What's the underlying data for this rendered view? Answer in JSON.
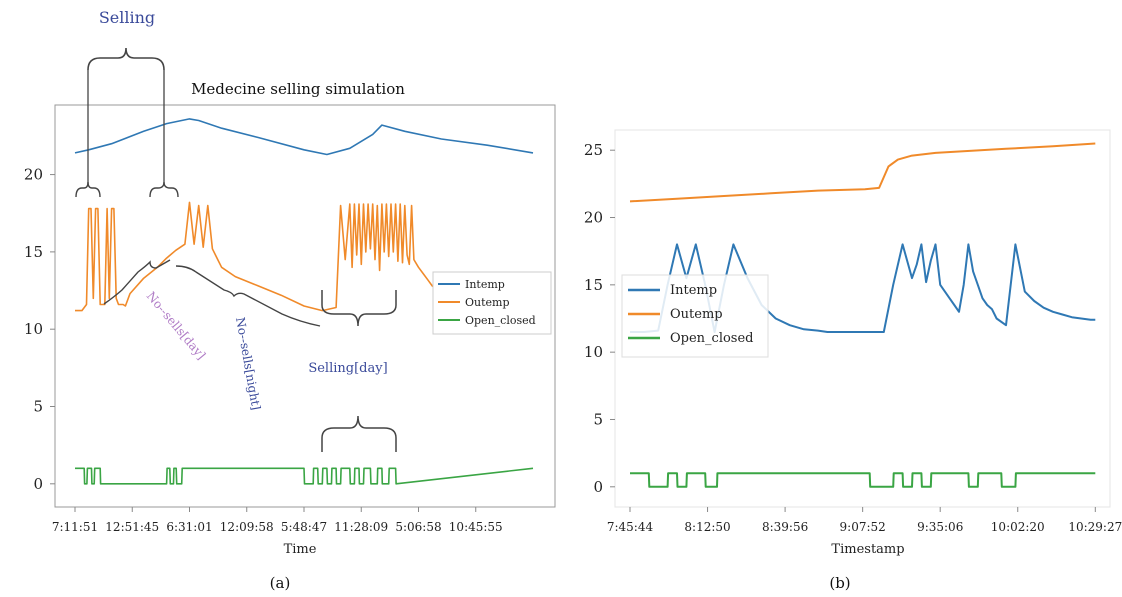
{
  "colors": {
    "intemp": "#2f78b4",
    "outemp": "#f08a2a",
    "open": "#3aa544",
    "annot_blue": "#3a4a9a",
    "annot_purple": "#b07cc6"
  },
  "chart_data": [
    {
      "type": "line",
      "panel_label": "(a)",
      "title": "Medecine selling simulation",
      "xlabel": "Time",
      "ylabel": "",
      "ylim": [
        -1.5,
        24.5
      ],
      "xlim": [
        0,
        100
      ],
      "yticks": [
        0,
        5,
        10,
        15,
        20
      ],
      "xticks": [
        "7:11:51",
        "12:51:45",
        "6:31:01",
        "12:09:58",
        "5:48:47",
        "11:28:09",
        "5:06:58",
        "10:45:55"
      ],
      "xtick_positions": [
        0,
        12.5,
        25,
        37.5,
        50,
        62.5,
        75,
        87.5
      ],
      "grid": false,
      "legend": [
        "Intemp",
        "Outemp",
        "Open_closed"
      ],
      "legend_position": "right",
      "annotations": [
        "Selling",
        "No--sells[day]",
        "No--sells[night]",
        "Selling[day]"
      ],
      "series": [
        {
          "name": "Intemp",
          "x": [
            0,
            3,
            8,
            15,
            20,
            25,
            27,
            32,
            40,
            50,
            55,
            60,
            65,
            67,
            72,
            80,
            90,
            100
          ],
          "y": [
            21.4,
            21.6,
            22.0,
            22.8,
            23.3,
            23.6,
            23.5,
            23.0,
            22.4,
            21.6,
            21.3,
            21.7,
            22.6,
            23.2,
            22.8,
            22.3,
            21.9,
            21.4
          ]
        },
        {
          "name": "Outemp",
          "x": [
            0,
            1.5,
            2.5,
            3,
            3.5,
            4,
            4.5,
            5,
            5.5,
            6,
            6.5,
            7,
            7.5,
            8,
            8.5,
            9,
            9.5,
            10,
            10.5,
            11,
            12,
            15,
            18,
            20,
            22,
            24,
            25,
            26,
            27,
            28,
            29,
            30,
            31,
            32,
            35,
            40,
            45,
            50,
            54,
            57,
            58,
            59,
            60,
            60.5,
            61,
            61.5,
            62,
            62.5,
            63,
            63.5,
            64,
            64.5,
            65,
            65.5,
            66,
            66.5,
            67,
            67.5,
            68,
            68.5,
            69,
            69.5,
            70,
            70.5,
            71,
            71.5,
            72,
            72.5,
            73,
            73.5,
            74,
            75,
            76,
            77,
            78,
            80
          ],
          "y": [
            11.2,
            11.2,
            11.6,
            17.8,
            17.8,
            12,
            17.8,
            17.8,
            11.6,
            11.6,
            11.6,
            17.8,
            12,
            17.8,
            17.8,
            12,
            11.6,
            11.6,
            11.6,
            11.5,
            12.3,
            13.3,
            14.0,
            14.6,
            15.1,
            15.5,
            18.2,
            15.5,
            18.0,
            15.3,
            18.0,
            15.2,
            14.6,
            14.0,
            13.4,
            12.8,
            12.2,
            11.5,
            11.2,
            11.4,
            18.0,
            14.5,
            18.1,
            14.0,
            18.1,
            14.8,
            18.1,
            14.2,
            18.1,
            15.0,
            18.1,
            15.2,
            18.1,
            14.5,
            18.0,
            13.8,
            18.1,
            15.0,
            18.1,
            14.7,
            18.1,
            15.0,
            18.1,
            14.4,
            18.1,
            14.3,
            18.0,
            14.8,
            14.2,
            18.0,
            14.5,
            14.0,
            13.6,
            13.2,
            12.8,
            12.3
          ]
        },
        {
          "name": "Open_closed",
          "x": [
            0,
            2,
            2.1,
            2.6,
            2.7,
            3.6,
            3.7,
            4.2,
            4.3,
            5.5,
            5.6,
            20,
            20.1,
            20.7,
            20.8,
            21.5,
            21.6,
            22.1,
            22.2,
            23.3,
            23.4,
            50,
            50.1,
            52,
            52.1,
            53,
            53.1,
            54,
            54.1,
            55,
            55.1,
            56,
            56.1,
            57,
            57.1,
            58,
            58.1,
            60,
            60.1,
            61,
            61.1,
            62,
            62.1,
            63,
            63.1,
            64.5,
            64.6,
            66,
            66.1,
            67,
            67.1,
            68.5,
            68.6,
            70,
            70.1,
            100
          ],
          "y": [
            1,
            1,
            0,
            0,
            1,
            1,
            0,
            0,
            1,
            1,
            0,
            0,
            1,
            1,
            0,
            0,
            1,
            1,
            0,
            0,
            1,
            1,
            0,
            0,
            1,
            1,
            0,
            0,
            1,
            1,
            0,
            0,
            1,
            1,
            0,
            0,
            1,
            1,
            0,
            0,
            1,
            1,
            0,
            0,
            1,
            1,
            0,
            0,
            1,
            1,
            0,
            0,
            1,
            1,
            0,
            1
          ]
        }
      ]
    },
    {
      "type": "line",
      "panel_label": "(b)",
      "title": "",
      "xlabel": "Timestamp",
      "ylabel": "",
      "ylim": [
        -1.5,
        26.5
      ],
      "xlim": [
        0,
        100
      ],
      "yticks": [
        0,
        5,
        10,
        15,
        20,
        25
      ],
      "xticks": [
        "7:45:44",
        "8:12:50",
        "8:39:56",
        "9:07:52",
        "9:35:06",
        "10:02:20",
        "10:29:27"
      ],
      "xtick_positions": [
        0,
        16.5,
        33,
        49.5,
        66,
        82.5,
        99
      ],
      "grid": false,
      "legend": [
        "Intemp",
        "Outemp",
        "Open_closed"
      ],
      "legend_position": "center-left",
      "series": [
        {
          "name": "Intemp",
          "x": [
            0,
            3,
            6,
            8,
            10,
            12,
            14,
            16,
            18,
            20,
            22,
            25,
            28,
            31,
            34,
            37,
            40,
            42,
            44,
            46,
            48,
            50,
            52,
            54,
            56,
            58,
            60,
            61,
            62,
            63,
            64,
            65,
            66,
            67,
            68,
            69,
            70,
            71,
            72,
            73,
            74,
            75,
            76,
            77,
            78,
            80,
            82,
            84,
            86,
            88,
            90,
            92,
            94,
            96,
            98,
            99
          ],
          "y": [
            11.5,
            11.5,
            11.6,
            15.0,
            18.0,
            15.5,
            18.0,
            15.0,
            11.5,
            15.0,
            18.0,
            15.5,
            13.5,
            12.5,
            12.0,
            11.7,
            11.6,
            11.5,
            11.5,
            11.5,
            11.5,
            11.5,
            11.5,
            11.5,
            15.0,
            18.0,
            15.5,
            16.5,
            18.0,
            15.2,
            16.8,
            18.0,
            15.0,
            14.5,
            14.0,
            13.5,
            13.0,
            15.0,
            18.0,
            16.0,
            15.0,
            14.0,
            13.5,
            13.2,
            12.5,
            12.0,
            18.0,
            14.5,
            13.8,
            13.3,
            13.0,
            12.8,
            12.6,
            12.5,
            12.4,
            12.4
          ]
        },
        {
          "name": "Outemp",
          "x": [
            0,
            10,
            20,
            30,
            40,
            50,
            53,
            54,
            55,
            57,
            60,
            65,
            70,
            80,
            90,
            99
          ],
          "y": [
            21.2,
            21.4,
            21.6,
            21.8,
            22.0,
            22.1,
            22.2,
            23.0,
            23.8,
            24.3,
            24.6,
            24.8,
            24.9,
            25.1,
            25.3,
            25.5
          ]
        },
        {
          "name": "Open_closed",
          "x": [
            0,
            4,
            4.1,
            8,
            8.1,
            10,
            10.1,
            12,
            12.1,
            16,
            16.1,
            18.5,
            18.6,
            22,
            22.1,
            51,
            51.1,
            56,
            56.1,
            58,
            58.1,
            60,
            60.1,
            62,
            62.1,
            64,
            64.1,
            68,
            68.1,
            72,
            72.1,
            74,
            74.1,
            79,
            79.1,
            82,
            82.1,
            99
          ],
          "y": [
            1,
            1,
            0,
            0,
            1,
            1,
            0,
            0,
            1,
            1,
            0,
            0,
            1,
            1,
            1,
            1,
            0,
            0,
            1,
            1,
            0,
            0,
            1,
            1,
            0,
            0,
            1,
            1,
            1,
            1,
            0,
            0,
            1,
            1,
            0,
            0,
            1,
            1
          ]
        }
      ]
    }
  ]
}
